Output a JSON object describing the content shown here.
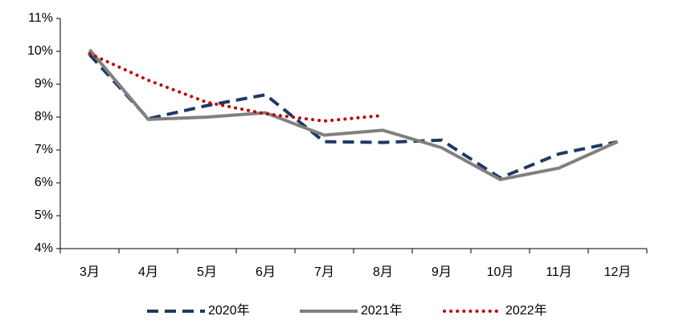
{
  "chart_data": {
    "type": "line",
    "categories": [
      "3月",
      "4月",
      "5月",
      "6月",
      "7月",
      "8月",
      "9月",
      "10月",
      "11月",
      "12月"
    ],
    "series": [
      {
        "name": "2020年",
        "color": "#1f3864",
        "dash": "dashed",
        "values": [
          9.9,
          7.95,
          8.35,
          8.68,
          7.25,
          7.23,
          7.3,
          6.15,
          6.88,
          7.25
        ]
      },
      {
        "name": "2021年",
        "color": "#808080",
        "dash": "solid",
        "values": [
          10.05,
          7.93,
          8.0,
          8.13,
          7.45,
          7.6,
          7.07,
          6.1,
          6.45,
          7.25
        ]
      },
      {
        "name": "2022年",
        "color": "#c00000",
        "dash": "dotted",
        "values": [
          9.93,
          9.12,
          8.45,
          8.1,
          7.88,
          8.05,
          null,
          null,
          null,
          null
        ]
      }
    ],
    "ylim": [
      4,
      11
    ],
    "yticks": [
      {
        "value": 4,
        "label": "4%"
      },
      {
        "value": 5,
        "label": "5%"
      },
      {
        "value": 6,
        "label": "6%"
      },
      {
        "value": 7,
        "label": "7%"
      },
      {
        "value": 8,
        "label": "8%"
      },
      {
        "value": 9,
        "label": "9%"
      },
      {
        "value": 10,
        "label": "10%"
      },
      {
        "value": 11,
        "label": "11%"
      }
    ],
    "grid": false,
    "legend": "bottom"
  }
}
